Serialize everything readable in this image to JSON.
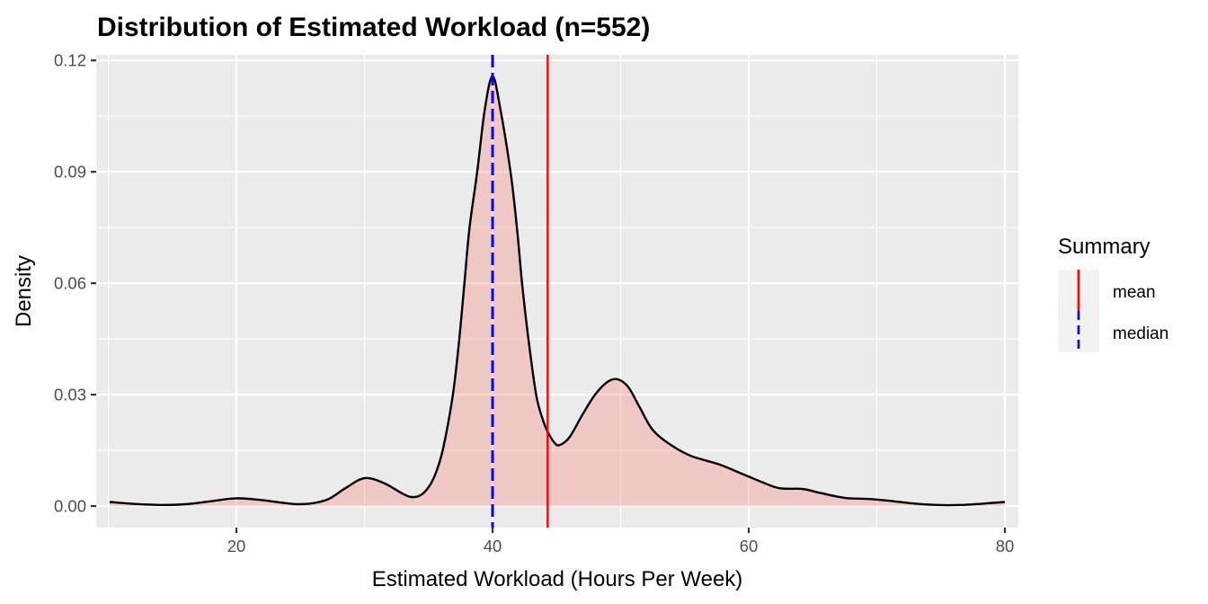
{
  "chart_data": {
    "type": "area",
    "subtype": "density",
    "title": "Distribution of Estimated Workload (n=552)",
    "xlabel": "Estimated Workload (Hours Per Week)",
    "ylabel": "Density",
    "xlim": [
      9.05,
      81.05
    ],
    "ylim": [
      -0.0058,
      0.1215
    ],
    "x_ticks": [
      20,
      40,
      60,
      80
    ],
    "x_tick_labels": [
      "20",
      "40",
      "60",
      "80"
    ],
    "x_minor_gridlines": [
      10,
      30,
      50,
      70
    ],
    "y_ticks": [
      0.0,
      0.03,
      0.06,
      0.09,
      0.12
    ],
    "y_tick_labels": [
      "0.00",
      "0.03",
      "0.06",
      "0.09",
      "0.12"
    ],
    "y_minor_gridlines": [
      0.015,
      0.045,
      0.075,
      0.105
    ],
    "grid": true,
    "n": 552,
    "density_curve": {
      "x": [
        10.1,
        12,
        14.1,
        16,
        18,
        20,
        22,
        24.9,
        27,
        28.5,
        30,
        31.5,
        33,
        33.8,
        34.6,
        35.4,
        36.1,
        36.9,
        37.4,
        37.8,
        38.2,
        38.8,
        39.4,
        40.0,
        40.6,
        41.4,
        41.9,
        42.3,
        42.8,
        43.4,
        43.9,
        44.3,
        44.8,
        45.2,
        46,
        47,
        48,
        49,
        49.8,
        50.6,
        51.5,
        52.5,
        53.9,
        55.5,
        57.7,
        59.6,
        61,
        62.4,
        64.2,
        65.5,
        67.5,
        69.4,
        71,
        72.8,
        74.7,
        76.5,
        78.5,
        80.0
      ],
      "y": [
        0.0011,
        0.0006,
        0.0003,
        0.0005,
        0.0013,
        0.0021,
        0.0016,
        0.0005,
        0.0016,
        0.0048,
        0.0075,
        0.0062,
        0.0033,
        0.0024,
        0.0035,
        0.0075,
        0.015,
        0.03,
        0.045,
        0.06,
        0.075,
        0.09,
        0.107,
        0.1157,
        0.107,
        0.09,
        0.075,
        0.06,
        0.045,
        0.03,
        0.0235,
        0.02,
        0.0172,
        0.0164,
        0.0185,
        0.0245,
        0.03,
        0.0335,
        0.0341,
        0.032,
        0.0265,
        0.0205,
        0.0165,
        0.0135,
        0.0112,
        0.0085,
        0.0065,
        0.0048,
        0.0046,
        0.0036,
        0.0022,
        0.0019,
        0.0014,
        0.0007,
        0.0003,
        0.0003,
        0.0007,
        0.0011
      ],
      "line_color": "#000000",
      "fill_color": "#F8766D",
      "fill_alpha": 0.3
    },
    "vlines": [
      {
        "name": "mean",
        "x": 44.3,
        "color": "#FF0000",
        "linetype": "solid"
      },
      {
        "name": "median",
        "x": 40.0,
        "color": "#0000FF",
        "linetype": "dashed"
      }
    ],
    "legend": {
      "title": "Summary",
      "position": "right",
      "entries": [
        {
          "label": "mean",
          "color": "#FF0000",
          "linetype": "solid"
        },
        {
          "label": "median",
          "color": "#0000FF",
          "linetype": "dashed"
        }
      ]
    },
    "colors": {
      "panel_background": "#EBEBEB",
      "gridline": "#FFFFFF",
      "tick_label": "#4D4D4D",
      "tick_mark": "#333333"
    }
  }
}
